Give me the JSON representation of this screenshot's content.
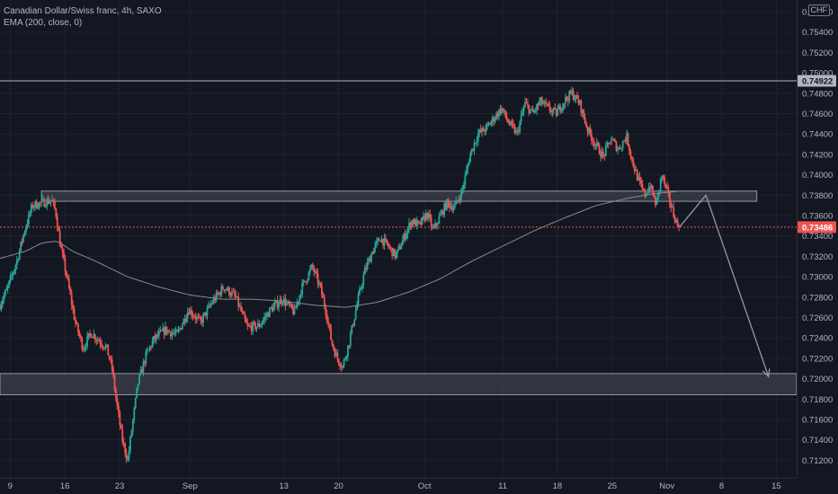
{
  "legend": {
    "title": "Canadian Dollar/Swiss franc, 4h, SAXO",
    "indicator": "EMA (200, close, 0)"
  },
  "currency_badge": "CHF",
  "colors": {
    "background": "#131722",
    "up": "#26a69a",
    "down": "#ef5350",
    "grid": "#1e222d",
    "ema": "#8a8a8a",
    "zone": "#4a4e5a",
    "resistance_line": "#b2b5be",
    "price_badge": "#ef5350",
    "level_badge": "#b2b5be"
  },
  "chart_data": {
    "type": "candlestick",
    "title": "Canadian Dollar/Swiss franc, 4h, SAXO",
    "indicator": "EMA (200, close, 0)",
    "ylim": [
      0.7108,
      0.756
    ],
    "y_ticks": [
      "0.75600",
      "0.75400",
      "0.75200",
      "0.75000",
      "0.74800",
      "0.74600",
      "0.74400",
      "0.74200",
      "0.74000",
      "0.73800",
      "0.73600",
      "0.73400",
      "0.73200",
      "0.73000",
      "0.72800",
      "0.72600",
      "0.72400",
      "0.72200",
      "0.72000",
      "0.71800",
      "0.71600",
      "0.71400",
      "0.71200"
    ],
    "x_ticks": [
      {
        "label": "9",
        "day": 9
      },
      {
        "label": "16",
        "day": 16
      },
      {
        "label": "23",
        "day": 23
      },
      {
        "label": "Sep",
        "day": 32
      },
      {
        "label": "13",
        "day": 44
      },
      {
        "label": "20",
        "day": 51
      },
      {
        "label": "Oct",
        "day": 62
      },
      {
        "label": "11",
        "day": 72
      },
      {
        "label": "18",
        "day": 79
      },
      {
        "label": "25",
        "day": 86
      },
      {
        "label": "Nov",
        "day": 93
      },
      {
        "label": "8",
        "day": 100
      },
      {
        "label": "15",
        "day": 107
      }
    ],
    "x_range_days": [
      7.7,
      109.6
    ],
    "last_candle_day": 94.6,
    "price_path": [
      [
        7.7,
        0.727
      ],
      [
        8.8,
        0.7288
      ],
      [
        10.0,
        0.7315
      ],
      [
        11.0,
        0.7345
      ],
      [
        12.0,
        0.737
      ],
      [
        13.5,
        0.7373
      ],
      [
        14.5,
        0.7375
      ],
      [
        15.0,
        0.7363
      ],
      [
        15.6,
        0.733
      ],
      [
        16.4,
        0.73
      ],
      [
        17.5,
        0.7255
      ],
      [
        18.5,
        0.723
      ],
      [
        19.5,
        0.7245
      ],
      [
        20.5,
        0.7238
      ],
      [
        21.5,
        0.723
      ],
      [
        22.2,
        0.721
      ],
      [
        22.8,
        0.7175
      ],
      [
        23.5,
        0.714
      ],
      [
        24.2,
        0.712
      ],
      [
        24.8,
        0.7155
      ],
      [
        25.5,
        0.7195
      ],
      [
        26.5,
        0.7222
      ],
      [
        27.5,
        0.7238
      ],
      [
        29.0,
        0.7248
      ],
      [
        30.5,
        0.7243
      ],
      [
        32.0,
        0.7268
      ],
      [
        33.5,
        0.7255
      ],
      [
        35.0,
        0.7275
      ],
      [
        36.5,
        0.729
      ],
      [
        38.0,
        0.728
      ],
      [
        39.5,
        0.725
      ],
      [
        41.0,
        0.7252
      ],
      [
        42.5,
        0.7268
      ],
      [
        44.0,
        0.7278
      ],
      [
        45.5,
        0.7265
      ],
      [
        46.5,
        0.729
      ],
      [
        47.8,
        0.731
      ],
      [
        48.8,
        0.729
      ],
      [
        49.6,
        0.7265
      ],
      [
        50.3,
        0.7235
      ],
      [
        51.0,
        0.722
      ],
      [
        51.7,
        0.7212
      ],
      [
        52.5,
        0.7235
      ],
      [
        53.5,
        0.7272
      ],
      [
        54.5,
        0.7305
      ],
      [
        55.5,
        0.7325
      ],
      [
        56.5,
        0.7338
      ],
      [
        57.5,
        0.733
      ],
      [
        58.5,
        0.732
      ],
      [
        59.5,
        0.7338
      ],
      [
        60.5,
        0.7355
      ],
      [
        61.5,
        0.735
      ],
      [
        62.5,
        0.7362
      ],
      [
        63.3,
        0.7345
      ],
      [
        64.0,
        0.7357
      ],
      [
        65.0,
        0.7372
      ],
      [
        66.0,
        0.7368
      ],
      [
        67.0,
        0.7385
      ],
      [
        68.0,
        0.742
      ],
      [
        69.0,
        0.744
      ],
      [
        70.0,
        0.7445
      ],
      [
        71.0,
        0.7455
      ],
      [
        72.0,
        0.7465
      ],
      [
        73.0,
        0.745
      ],
      [
        74.0,
        0.744
      ],
      [
        75.0,
        0.747
      ],
      [
        76.0,
        0.746
      ],
      [
        77.0,
        0.7472
      ],
      [
        78.0,
        0.7465
      ],
      [
        79.0,
        0.746
      ],
      [
        80.0,
        0.7472
      ],
      [
        81.0,
        0.748
      ],
      [
        82.0,
        0.747
      ],
      [
        83.0,
        0.7445
      ],
      [
        84.0,
        0.743
      ],
      [
        85.0,
        0.7418
      ],
      [
        86.0,
        0.7435
      ],
      [
        87.0,
        0.7425
      ],
      [
        88.0,
        0.7438
      ],
      [
        88.8,
        0.7412
      ],
      [
        89.5,
        0.7395
      ],
      [
        90.3,
        0.738
      ],
      [
        91.0,
        0.739
      ],
      [
        91.8,
        0.737
      ],
      [
        92.5,
        0.74
      ],
      [
        93.3,
        0.738
      ],
      [
        94.0,
        0.7362
      ],
      [
        94.6,
        0.73486
      ]
    ],
    "ema_path": [
      [
        7.7,
        0.7318
      ],
      [
        11.0,
        0.7325
      ],
      [
        13.0,
        0.7333
      ],
      [
        15.0,
        0.7335
      ],
      [
        17.0,
        0.7325
      ],
      [
        20.0,
        0.7315
      ],
      [
        24.0,
        0.73
      ],
      [
        28.0,
        0.729
      ],
      [
        32.0,
        0.7282
      ],
      [
        36.0,
        0.7278
      ],
      [
        40.0,
        0.7278
      ],
      [
        44.0,
        0.7276
      ],
      [
        48.0,
        0.7272
      ],
      [
        52.0,
        0.727
      ],
      [
        56.0,
        0.7275
      ],
      [
        60.0,
        0.7285
      ],
      [
        64.0,
        0.7298
      ],
      [
        68.0,
        0.7315
      ],
      [
        72.0,
        0.733
      ],
      [
        76.0,
        0.7345
      ],
      [
        80.0,
        0.7358
      ],
      [
        84.0,
        0.737
      ],
      [
        88.0,
        0.7377
      ],
      [
        91.0,
        0.7381
      ],
      [
        94.6,
        0.7384
      ]
    ],
    "zones": [
      {
        "name": "resistance-zone",
        "from_day": 13.0,
        "to_day": 104.5,
        "low": 0.7374,
        "high": 0.7384
      },
      {
        "name": "support-zone",
        "from_day": 7.7,
        "to_day": 109.6,
        "low": 0.71842,
        "high": 0.7205
      }
    ],
    "resistance_line": {
      "price": 0.74922,
      "label": "0.74922"
    },
    "current_price": {
      "price": 0.73486,
      "label": "0.73486"
    },
    "projection": [
      [
        94.6,
        0.73486
      ],
      [
        98.0,
        0.738
      ],
      [
        106.0,
        0.7202
      ]
    ]
  }
}
